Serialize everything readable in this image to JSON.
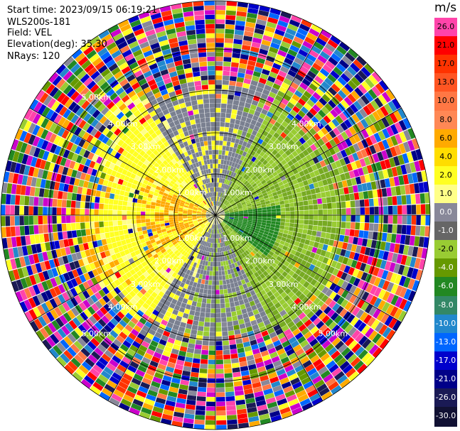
{
  "header": {
    "start_time": "Start time: 2023/09/15 06:19:21",
    "instrument": "WLS200s-181",
    "field": "Field: VEL",
    "elevation": "Elevation(deg): 35.30",
    "nrays": "NRays: 120"
  },
  "colorbar": {
    "unit": "m/s",
    "labels": [
      "26.0",
      "21.0",
      "17.0",
      "13.0",
      "10.0",
      "8.0",
      "6.0",
      "4.0",
      "2.0",
      "1.0",
      "0.0",
      "-1.0",
      "-2.0",
      "-4.0",
      "-6.0",
      "-8.0",
      "-10.0",
      "-13.0",
      "-17.0",
      "-21.0",
      "-26.0",
      "-30.0"
    ],
    "colors": [
      "#ff44aa",
      "#ff0000",
      "#ff3300",
      "#ff5522",
      "#ff7744",
      "#ff8855",
      "#ffaa00",
      "#ffdd00",
      "#ffff22",
      "#ffff88",
      "#888899",
      "#666666",
      "#99cc33",
      "#669900",
      "#228822",
      "#338866",
      "#2288cc",
      "#0066ff",
      "#0000cc",
      "#000088",
      "#1a1a55",
      "#111133"
    ]
  },
  "ring_labels": [
    "1.00km",
    "2.00km",
    "3.00km",
    "4.00km",
    "5.00km"
  ],
  "palette": {
    "grey": "#7a8090",
    "light_green": "#99cc33",
    "green": "#77aa22",
    "dark_green": "#228822",
    "yellow": "#ffff22",
    "pale_yellow": "#ffff88",
    "orange": "#ffaa00",
    "noise": [
      "#ff44aa",
      "#ff0000",
      "#ff3300",
      "#ffaa00",
      "#ffff22",
      "#99cc33",
      "#669900",
      "#228822",
      "#2288cc",
      "#0066ff",
      "#0000cc",
      "#000088",
      "#1a1a55",
      "#cc00cc",
      "#ff7744",
      "#888899"
    ]
  }
}
